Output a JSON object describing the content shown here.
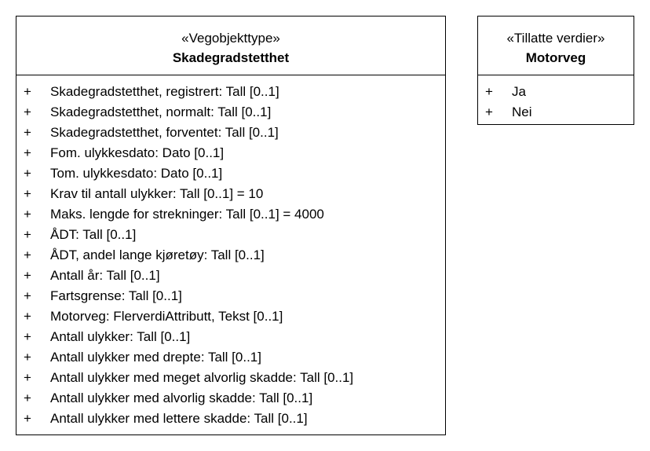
{
  "classes": [
    {
      "stereotype": "«Vegobjekttype»",
      "name": "Skadegradstetthet",
      "attributes": [
        {
          "visibility": "+",
          "text": "Skadegradstetthet, registrert: Tall [0..1]"
        },
        {
          "visibility": "+",
          "text": "Skadegradstetthet, normalt: Tall [0..1]"
        },
        {
          "visibility": "+",
          "text": "Skadegradstetthet, forventet: Tall [0..1]"
        },
        {
          "visibility": "+",
          "text": "Fom. ulykkesdato: Dato [0..1]"
        },
        {
          "visibility": "+",
          "text": "Tom. ulykkesdato: Dato [0..1]"
        },
        {
          "visibility": "+",
          "text": "Krav til antall ulykker: Tall [0..1] = 10"
        },
        {
          "visibility": "+",
          "text": "Maks. lengde for strekninger: Tall [0..1] = 4000"
        },
        {
          "visibility": "+",
          "text": "ÅDT: Tall [0..1]"
        },
        {
          "visibility": "+",
          "text": "ÅDT, andel lange kjøretøy: Tall [0..1]"
        },
        {
          "visibility": "+",
          "text": "Antall år: Tall [0..1]"
        },
        {
          "visibility": "+",
          "text": "Fartsgrense: Tall [0..1]"
        },
        {
          "visibility": "+",
          "text": "Motorveg: FlerverdiAttributt, Tekst [0..1]"
        },
        {
          "visibility": "+",
          "text": "Antall ulykker: Tall [0..1]"
        },
        {
          "visibility": "+",
          "text": "Antall ulykker med drepte: Tall [0..1]"
        },
        {
          "visibility": "+",
          "text": "Antall ulykker med meget alvorlig skadde: Tall [0..1]"
        },
        {
          "visibility": "+",
          "text": "Antall ulykker med alvorlig skadde: Tall [0..1]"
        },
        {
          "visibility": "+",
          "text": "Antall ulykker med lettere skadde: Tall [0..1]"
        }
      ]
    },
    {
      "stereotype": "«Tillatte verdier»",
      "name": "Motorveg",
      "attributes": [
        {
          "visibility": "+",
          "text": "Ja"
        },
        {
          "visibility": "+",
          "text": "Nei"
        }
      ]
    }
  ]
}
